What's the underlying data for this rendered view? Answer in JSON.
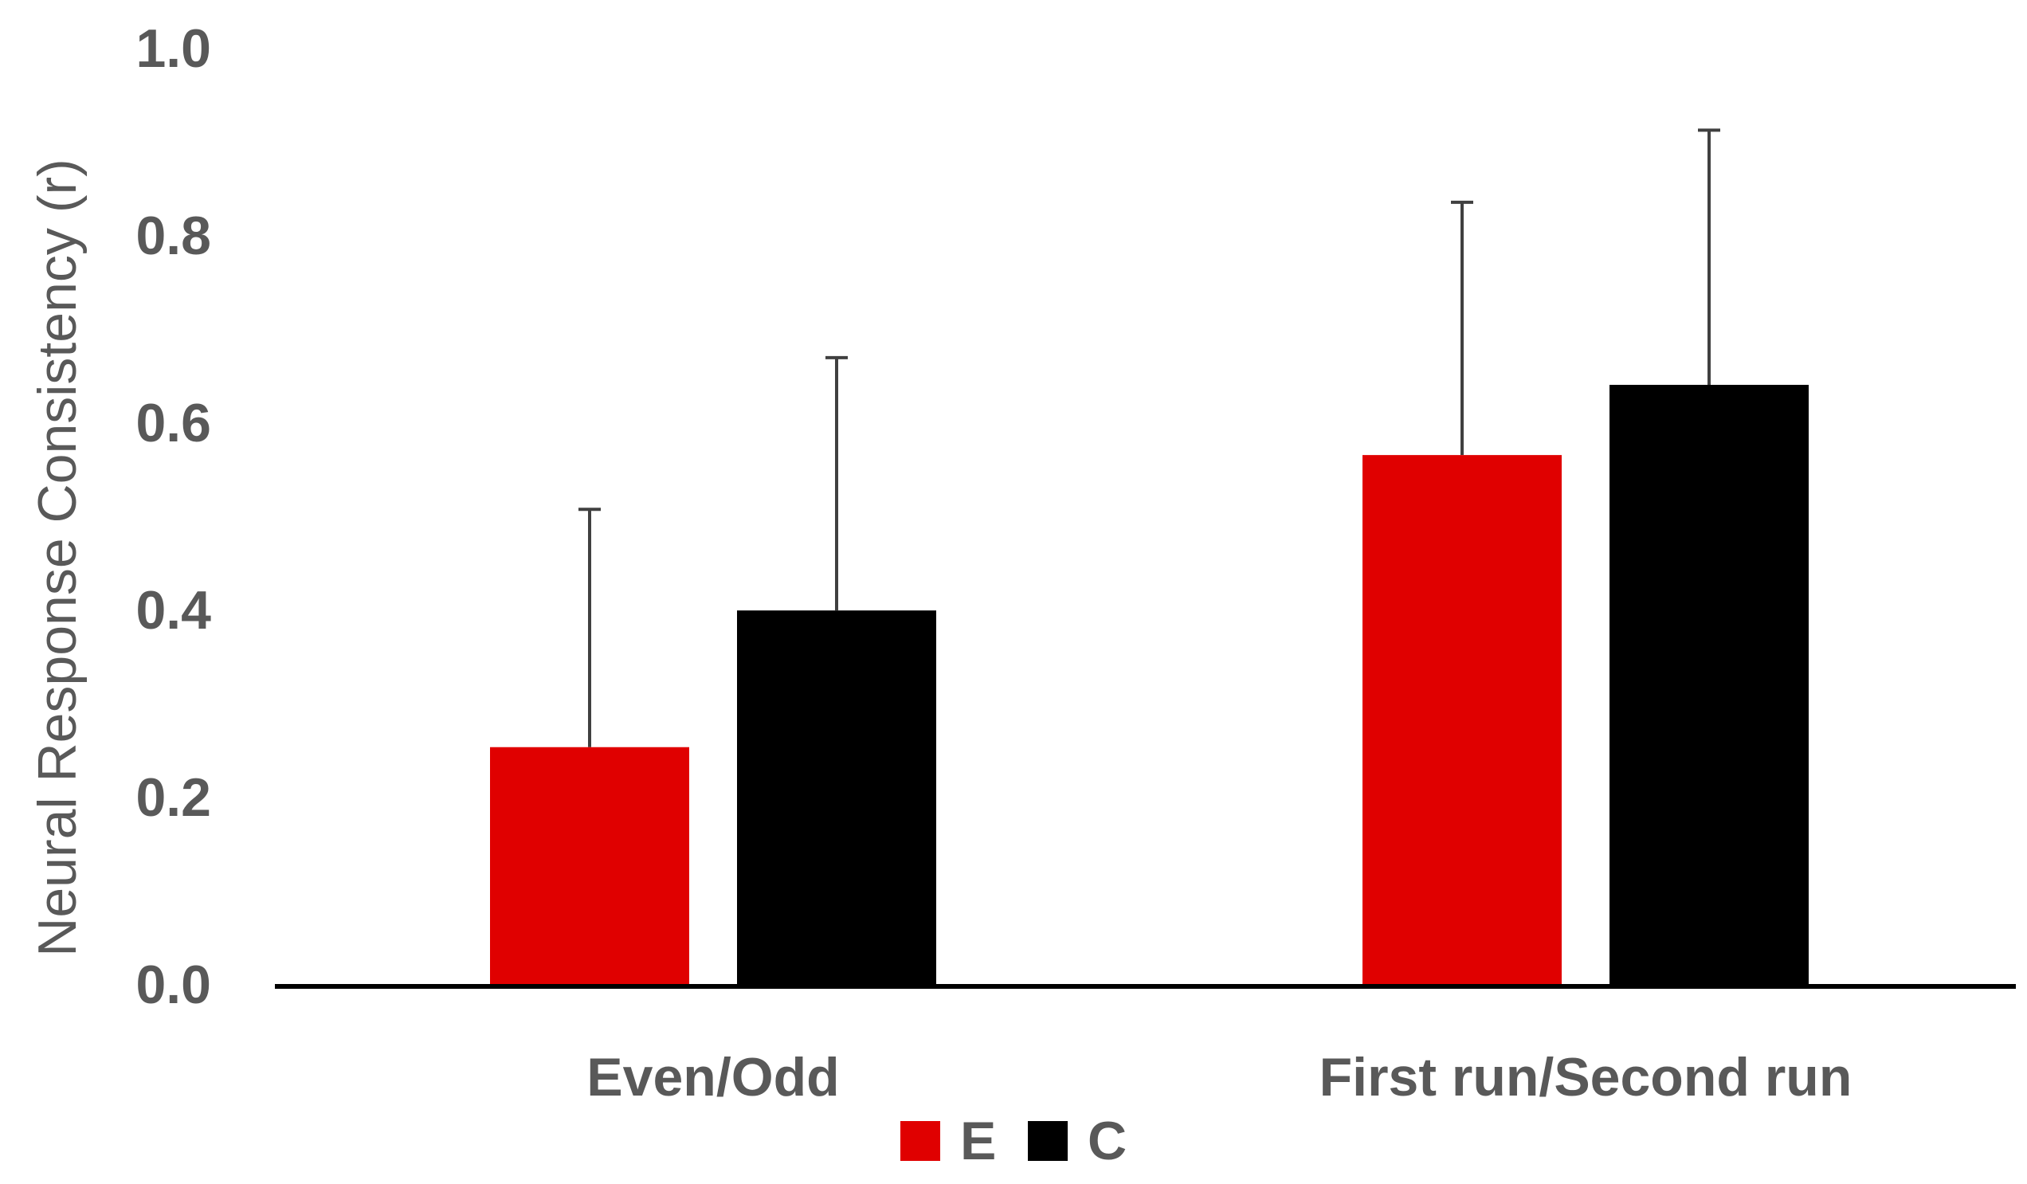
{
  "chart_data": {
    "type": "bar",
    "title": "",
    "xlabel": "",
    "ylabel": "Neural Response Consistency (r)",
    "categories": [
      "Even/Odd",
      "First run/Second run"
    ],
    "series": [
      {
        "name": "E",
        "color": "#e00000",
        "values": [
          0.253,
          0.565
        ],
        "error_upper": [
          0.254,
          0.27
        ]
      },
      {
        "name": "C",
        "color": "#000000",
        "values": [
          0.399,
          0.64
        ],
        "error_upper": [
          0.27,
          0.272
        ]
      }
    ],
    "ylim": [
      0,
      1.0
    ],
    "yticks": [
      "0.0",
      "0.2",
      "0.4",
      "0.6",
      "0.8",
      "1.0"
    ],
    "ytick_values": [
      0,
      0.2,
      0.4,
      0.6,
      0.8,
      1.0
    ],
    "grid": false,
    "legend_position": "bottom-center"
  }
}
